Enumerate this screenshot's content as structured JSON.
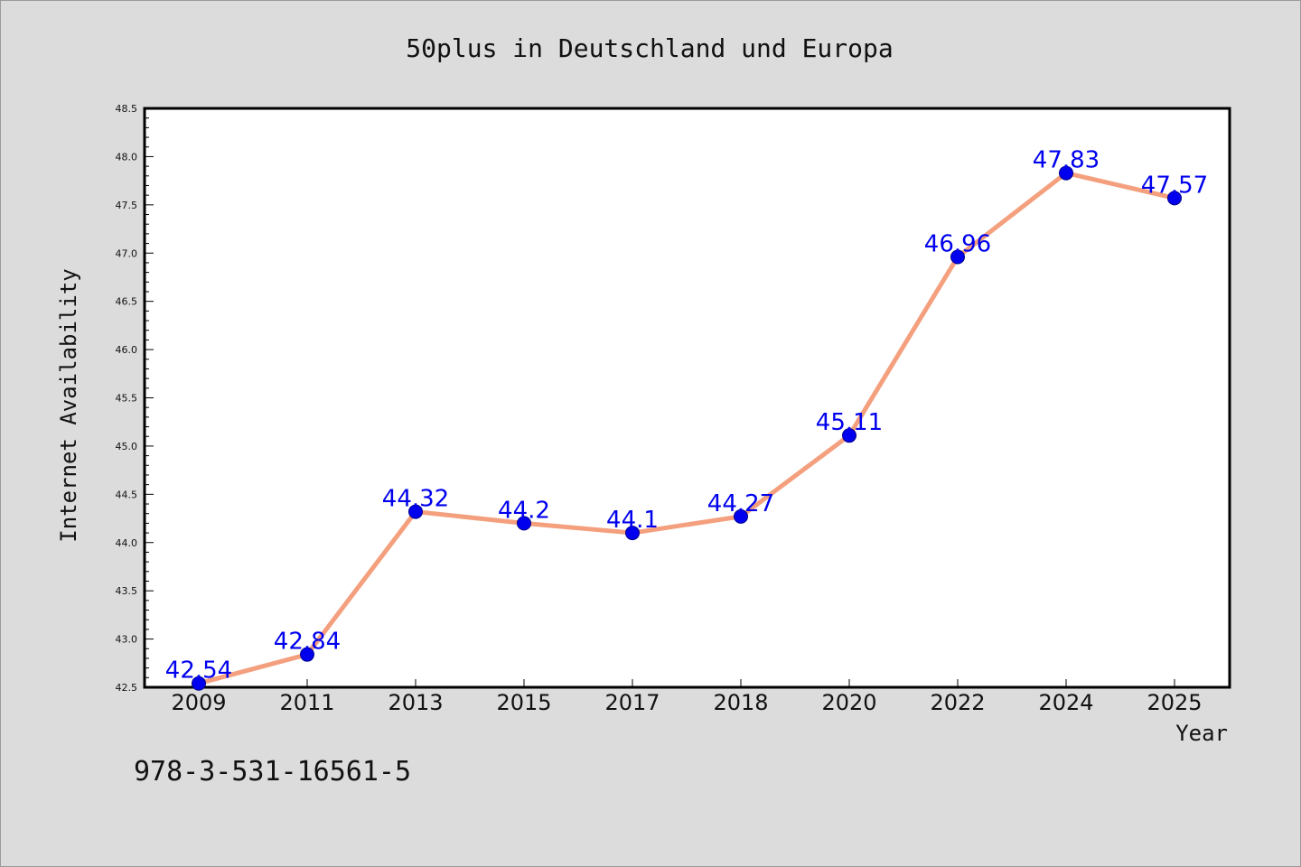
{
  "colors": {
    "background": "#dcdcdc",
    "plot_area": "#ffffff",
    "line": "#f4a07e",
    "marker": "#0000ee",
    "data_label": "#0000ee",
    "axes": "#000000"
  },
  "caption": "978-3-531-16561-5",
  "chart_data": {
    "type": "line",
    "title": "50plus in Deutschland und Europa",
    "xlabel": "Year",
    "ylabel": "Internet Availability",
    "categories": [
      "2009",
      "2011",
      "2013",
      "2015",
      "2017",
      "2018",
      "2020",
      "2022",
      "2024",
      "2025"
    ],
    "series": [
      {
        "values": [
          42.54,
          42.84,
          44.32,
          44.2,
          44.1,
          44.27,
          45.11,
          46.96,
          47.83,
          47.57
        ],
        "labels": [
          "42.54",
          "42.84",
          "44.32",
          "44.2",
          "44.1",
          "44.27",
          "45.11",
          "46.96",
          "47.83",
          "47.57"
        ]
      }
    ],
    "ylim": [
      42.5,
      48.5
    ],
    "yticks": [
      "42.5",
      "43.0",
      "43.5",
      "44.0",
      "44.5",
      "45.0",
      "45.5",
      "46.0",
      "46.5",
      "47.0",
      "47.5",
      "48.0",
      "48.5"
    ],
    "grid": false,
    "legend": "none"
  }
}
